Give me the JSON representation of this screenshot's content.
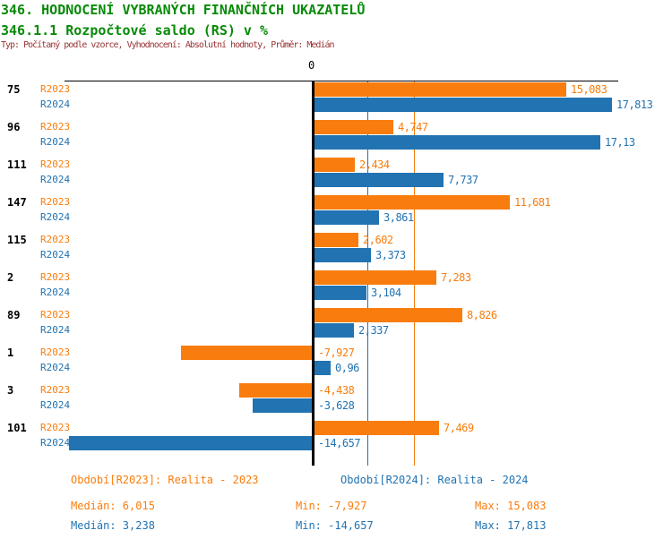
{
  "header": {
    "title": "346. HODNOCENÍ VYBRANÝCH FINANČNÍCH UKAZATELŮ",
    "subtitle": "346.1.1 Rozpočtové saldo (RS) v %",
    "meta": "Typ: Počítaný podle vzorce, Vyhodnocení: Absolutní hodnoty, Průměr: Medián"
  },
  "colors": {
    "title_green": "#088a08",
    "meta_red": "#993333",
    "axis_black": "#000000",
    "r2023_orange": "#f87d0e",
    "r2024_blue": "#2173b2"
  },
  "chart_data": {
    "type": "bar",
    "orientation": "horizontal",
    "title": "346.1.1 Rozpočtové saldo (RS) v %",
    "zero_label": "0",
    "categories": [
      "75",
      "96",
      "111",
      "147",
      "115",
      "2",
      "89",
      "1",
      "3",
      "101"
    ],
    "series": [
      {
        "name": "R2023",
        "color": "#f87d0e",
        "values": [
          15.083,
          4.747,
          2.434,
          11.681,
          2.602,
          7.283,
          8.826,
          -7.927,
          -4.438,
          7.469
        ],
        "value_labels": [
          "15,083",
          "4,747",
          "2,434",
          "11,681",
          "2,602",
          "7,283",
          "8,826",
          "-7,927",
          "-4,438",
          "7,469"
        ]
      },
      {
        "name": "R2024",
        "color": "#2173b2",
        "values": [
          17.813,
          17.13,
          7.737,
          3.861,
          3.373,
          3.104,
          2.337,
          0.96,
          -3.628,
          -14.657
        ],
        "value_labels": [
          "17,813",
          "17,13",
          "7,737",
          "3,861",
          "3,373",
          "3,104",
          "2,337",
          "0,96",
          "-3,628",
          "-14,657"
        ]
      }
    ],
    "reference_lines": [
      {
        "name": "median-r2023",
        "value": 6.015,
        "color": "#f87d0e"
      },
      {
        "name": "median-r2024",
        "value": 3.238,
        "color": "#2173b2"
      }
    ],
    "xlim": [
      -16,
      18.5
    ],
    "grid": false,
    "legend_position": "bottom"
  },
  "legend": {
    "r2023": "Období[R2023]: Realita - 2023",
    "r2024": "Období[R2024]: Realita - 2024"
  },
  "stats": {
    "r2023": {
      "median": "Medián: 6,015",
      "min": "Min: -7,927",
      "max": "Max: 15,083"
    },
    "r2024": {
      "median": "Medián: 3,238",
      "min": "Min: -14,657",
      "max": "Max: 17,813"
    }
  }
}
